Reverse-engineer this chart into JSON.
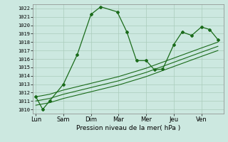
{
  "title": "",
  "xlabel": "Pression niveau de la mer( hPa )",
  "bg_color": "#cce8e0",
  "grid_color": "#aaccbb",
  "line_color": "#1a6b1a",
  "ylim": [
    1009.5,
    1022.5
  ],
  "yticks": [
    1010,
    1011,
    1012,
    1013,
    1014,
    1015,
    1016,
    1017,
    1018,
    1019,
    1020,
    1021,
    1022
  ],
  "xtick_labels": [
    "Lun",
    "Sam",
    "Dim",
    "Mar",
    "Mer",
    "Jeu",
    "Ven"
  ],
  "xtick_pos": [
    0,
    1,
    2,
    3,
    4,
    5,
    6
  ],
  "xlim": [
    -0.1,
    6.8
  ],
  "series1_x": [
    0.0,
    0.25,
    0.5,
    1.0,
    1.5,
    2.0,
    2.35,
    2.95,
    3.3,
    3.65,
    4.0,
    4.3,
    4.6,
    5.0,
    5.3,
    5.65,
    6.0,
    6.3,
    6.6
  ],
  "series1_y": [
    1011.5,
    1010.0,
    1011.0,
    1013.0,
    1016.5,
    1021.3,
    1022.2,
    1021.6,
    1019.2,
    1015.8,
    1015.8,
    1014.7,
    1014.8,
    1017.7,
    1019.2,
    1018.8,
    1019.8,
    1019.5,
    1018.3
  ],
  "series2_x": [
    0.0,
    0.5,
    1.0,
    1.5,
    2.0,
    2.5,
    3.0,
    3.5,
    4.0,
    4.5,
    5.0,
    5.5,
    6.0,
    6.6
  ],
  "series2_y": [
    1011.5,
    1011.8,
    1012.3,
    1012.7,
    1013.1,
    1013.5,
    1013.9,
    1014.4,
    1014.9,
    1015.5,
    1016.1,
    1016.7,
    1017.3,
    1018.0
  ],
  "series3_x": [
    0.0,
    0.5,
    1.0,
    1.5,
    2.0,
    2.5,
    3.0,
    3.5,
    4.0,
    4.5,
    5.0,
    5.5,
    6.0,
    6.6
  ],
  "series3_y": [
    1011.0,
    1011.3,
    1011.8,
    1012.2,
    1012.6,
    1013.0,
    1013.4,
    1013.9,
    1014.4,
    1015.0,
    1015.6,
    1016.2,
    1016.8,
    1017.5
  ],
  "series4_x": [
    0.0,
    0.5,
    1.0,
    1.5,
    2.0,
    2.5,
    3.0,
    3.5,
    4.0,
    4.5,
    5.0,
    5.5,
    6.0,
    6.6
  ],
  "series4_y": [
    1010.5,
    1010.8,
    1011.3,
    1011.7,
    1012.1,
    1012.5,
    1012.9,
    1013.4,
    1013.9,
    1014.5,
    1015.1,
    1015.7,
    1016.3,
    1017.0
  ]
}
